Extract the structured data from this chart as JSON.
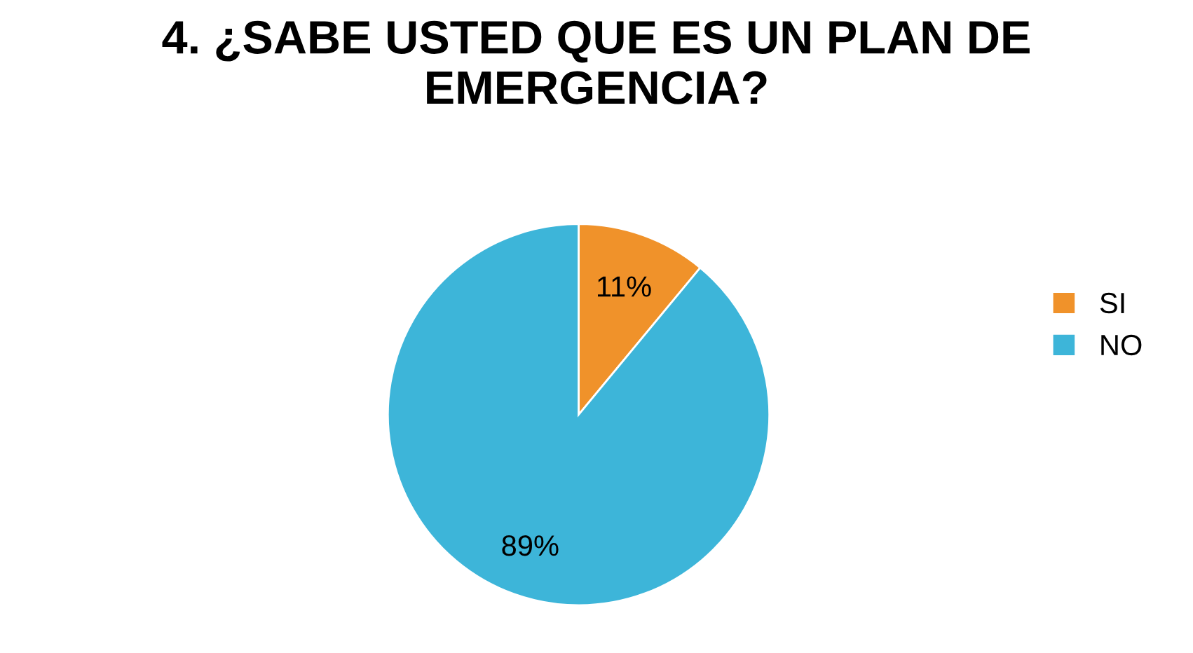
{
  "chart_data": {
    "type": "pie",
    "title": "4. ¿SABE USTED QUE ES UN PLAN DE EMERGENCIA?",
    "categories": [
      "SI",
      "NO"
    ],
    "values": [
      11,
      89
    ],
    "colors": [
      "#f0922a",
      "#3db5d9"
    ],
    "value_labels": [
      "11%",
      "89%"
    ],
    "legend": "right"
  }
}
